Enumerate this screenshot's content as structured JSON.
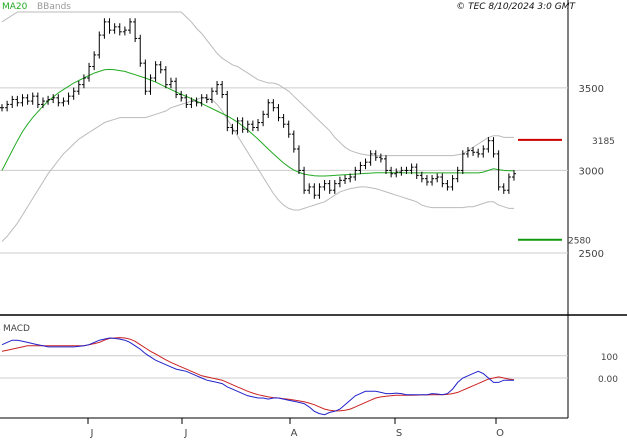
{
  "header": {
    "legend_ma": "MA20",
    "legend_bb": "BBands",
    "copyright": "© TEC 8/10/2024 3:0 GMT"
  },
  "colors": {
    "ohlc": "#000000",
    "ma20": "#22aa22",
    "bands": "#bbbbbb",
    "grid": "#cccccc",
    "macd": "#2222cc",
    "signal": "#cc2222",
    "resistance": "#cc0000",
    "support": "#119911",
    "ma_legend": "#22aa22",
    "bb_legend": "#999999",
    "frame": "#000000"
  },
  "chart_data": [
    {
      "type": "ohlc",
      "ylim": [
        2130,
        3960
      ],
      "yticks": [
        "3500",
        "3000",
        "2500"
      ],
      "xlabels": [
        "J",
        "J",
        "A",
        "S",
        "O"
      ],
      "levels": [
        {
          "label": "3185",
          "value": 3185,
          "color": "#cc0000"
        },
        {
          "label": "2580",
          "value": 2580,
          "color": "#119911"
        }
      ],
      "close": [
        3380,
        3400,
        3430,
        3410,
        3440,
        3420,
        3450,
        3400,
        3420,
        3430,
        3440,
        3410,
        3420,
        3450,
        3480,
        3520,
        3560,
        3630,
        3700,
        3820,
        3900,
        3850,
        3870,
        3840,
        3850,
        3900,
        3800,
        3650,
        3480,
        3560,
        3640,
        3610,
        3520,
        3540,
        3460,
        3440,
        3400,
        3420,
        3410,
        3440,
        3430,
        3480,
        3520,
        3460,
        3260,
        3240,
        3300,
        3250,
        3280,
        3260,
        3290,
        3340,
        3410,
        3380,
        3320,
        3280,
        3220,
        3130,
        3000,
        2880,
        2900,
        2850,
        2900,
        2920,
        2880,
        2920,
        2940,
        2950,
        2960,
        3000,
        3030,
        3050,
        3100,
        3080,
        3070,
        3000,
        2980,
        2990,
        3000,
        3000,
        3020,
        2970,
        2950,
        2930,
        2950,
        2960,
        2920,
        2900,
        2950,
        3000,
        3100,
        3120,
        3110,
        3100,
        3130,
        3180,
        3100,
        2900,
        2880,
        2960,
        2980
      ],
      "ma20": [
        3000,
        3060,
        3120,
        3180,
        3235,
        3280,
        3320,
        3355,
        3390,
        3420,
        3445,
        3470,
        3490,
        3510,
        3530,
        3545,
        3560,
        3575,
        3590,
        3600,
        3610,
        3612,
        3610,
        3605,
        3600,
        3590,
        3580,
        3570,
        3560,
        3548,
        3535,
        3520,
        3505,
        3490,
        3475,
        3462,
        3448,
        3435,
        3420,
        3405,
        3390,
        3375,
        3360,
        3345,
        3330,
        3312,
        3292,
        3270,
        3245,
        3218,
        3190,
        3160,
        3130,
        3100,
        3072,
        3045,
        3022,
        3002,
        2988,
        2978,
        2972,
        2968,
        2966,
        2966,
        2968,
        2970,
        2972,
        2974,
        2976,
        2978,
        2980,
        2982,
        2984,
        2986,
        2986,
        2986,
        2986,
        2986,
        2986,
        2985,
        2985,
        2985,
        2985,
        2985,
        2985,
        2985,
        2985,
        2985,
        2985,
        2985,
        2985,
        2985,
        2985,
        2985,
        2990,
        3000,
        3010,
        3005,
        3000,
        2998,
        2998
      ],
      "bb_upper": [
        3900,
        3920,
        3940,
        3960,
        3960,
        3960,
        3960,
        3960,
        3960,
        3960,
        3960,
        3960,
        3960,
        3960,
        3960,
        3960,
        3960,
        3960,
        3960,
        3960,
        3960,
        3960,
        3960,
        3960,
        3960,
        3960,
        3960,
        3960,
        3960,
        3960,
        3960,
        3960,
        3960,
        3960,
        3960,
        3960,
        3930,
        3900,
        3860,
        3830,
        3790,
        3750,
        3710,
        3680,
        3660,
        3640,
        3630,
        3610,
        3590,
        3570,
        3550,
        3540,
        3530,
        3530,
        3520,
        3500,
        3480,
        3450,
        3420,
        3390,
        3360,
        3330,
        3300,
        3270,
        3240,
        3200,
        3170,
        3140,
        3120,
        3110,
        3100,
        3095,
        3090,
        3090,
        3090,
        3090,
        3090,
        3090,
        3090,
        3090,
        3090,
        3090,
        3090,
        3090,
        3090,
        3090,
        3090,
        3090,
        3090,
        3095,
        3100,
        3120,
        3140,
        3160,
        3180,
        3200,
        3210,
        3210,
        3200,
        3200,
        3200
      ],
      "bb_lower": [
        2570,
        2600,
        2640,
        2680,
        2730,
        2780,
        2830,
        2880,
        2930,
        2980,
        3020,
        3060,
        3100,
        3130,
        3160,
        3190,
        3210,
        3230,
        3250,
        3270,
        3290,
        3300,
        3310,
        3320,
        3320,
        3320,
        3320,
        3320,
        3320,
        3330,
        3340,
        3350,
        3360,
        3380,
        3390,
        3400,
        3410,
        3420,
        3430,
        3440,
        3440,
        3430,
        3400,
        3360,
        3310,
        3260,
        3210,
        3160,
        3110,
        3060,
        3010,
        2960,
        2910,
        2860,
        2820,
        2790,
        2770,
        2760,
        2760,
        2770,
        2780,
        2790,
        2800,
        2810,
        2830,
        2850,
        2870,
        2880,
        2890,
        2895,
        2900,
        2900,
        2895,
        2890,
        2880,
        2870,
        2860,
        2850,
        2840,
        2830,
        2820,
        2810,
        2790,
        2780,
        2775,
        2775,
        2775,
        2775,
        2775,
        2775,
        2775,
        2780,
        2780,
        2790,
        2800,
        2810,
        2810,
        2790,
        2780,
        2770,
        2770
      ]
    },
    {
      "type": "line",
      "title": "MACD",
      "yticks": [
        "100",
        "0.00"
      ],
      "ylim": [
        -180,
        270
      ],
      "series": [
        {
          "values": [
            150,
            160,
            170,
            170,
            165,
            160,
            155,
            150,
            145,
            140,
            140,
            140,
            140,
            140,
            140,
            142,
            145,
            150,
            160,
            170,
            175,
            180,
            178,
            175,
            170,
            160,
            145,
            130,
            110,
            95,
            80,
            70,
            60,
            50,
            40,
            35,
            30,
            20,
            10,
            0,
            -10,
            -15,
            -20,
            -25,
            -40,
            -50,
            -60,
            -70,
            -80,
            -85,
            -90,
            -90,
            -95,
            -90,
            -90,
            -95,
            -100,
            -105,
            -110,
            -115,
            -130,
            -150,
            -160,
            -165,
            -155,
            -150,
            -140,
            -120,
            -100,
            -80,
            -70,
            -60,
            -60,
            -60,
            -65,
            -70,
            -70,
            -68,
            -70,
            -75,
            -75,
            -75,
            -75,
            -75,
            -70,
            -72,
            -75,
            -70,
            -50,
            -20,
            0,
            10,
            20,
            30,
            20,
            0,
            -20,
            -20,
            -10,
            -10,
            -10
          ]
        },
        {
          "values": [
            120,
            125,
            130,
            135,
            140,
            145,
            145,
            145,
            145,
            145,
            145,
            145,
            145,
            145,
            145,
            145,
            145,
            150,
            155,
            160,
            170,
            178,
            180,
            182,
            180,
            175,
            165,
            150,
            135,
            120,
            108,
            95,
            82,
            70,
            60,
            50,
            40,
            30,
            20,
            10,
            5,
            0,
            -5,
            -10,
            -20,
            -30,
            -40,
            -50,
            -60,
            -68,
            -75,
            -80,
            -85,
            -88,
            -90,
            -93,
            -96,
            -99,
            -103,
            -107,
            -113,
            -120,
            -130,
            -140,
            -145,
            -148,
            -148,
            -145,
            -140,
            -130,
            -120,
            -110,
            -100,
            -90,
            -85,
            -82,
            -80,
            -78,
            -78,
            -78,
            -78,
            -77,
            -76,
            -76,
            -75,
            -75,
            -75,
            -74,
            -70,
            -65,
            -55,
            -45,
            -35,
            -25,
            -15,
            -5,
            0,
            5,
            0,
            -5,
            -8
          ]
        }
      ]
    }
  ]
}
